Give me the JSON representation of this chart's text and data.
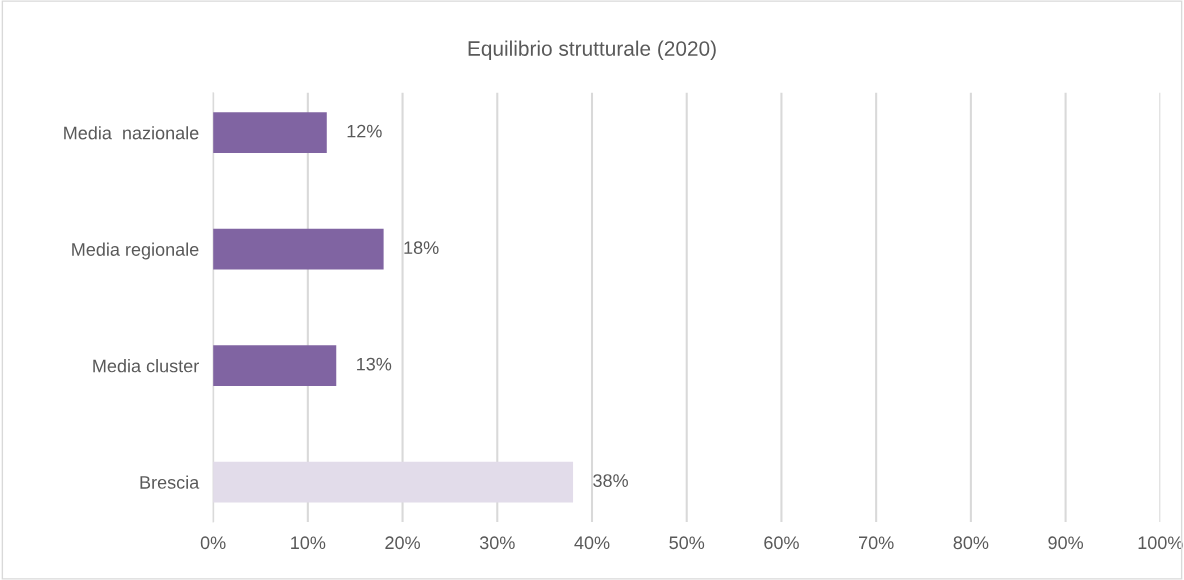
{
  "chart_data": {
    "type": "bar",
    "orientation": "horizontal",
    "title": "Equilibrio strutturale (2020)",
    "categories": [
      "Media  nazionale",
      "Media regionale",
      "Media cluster",
      "Brescia"
    ],
    "values": [
      12,
      18,
      13,
      38
    ],
    "colors": [
      "#8064a2",
      "#8064a2",
      "#8064a2",
      "#e2dcea"
    ],
    "value_labels": [
      "12%",
      "18%",
      "13%",
      "38%"
    ],
    "xlim": [
      0,
      100
    ],
    "xticks": [
      {
        "value": 0,
        "label": "0%"
      },
      {
        "value": 10,
        "label": "10%"
      },
      {
        "value": 20,
        "label": "20%"
      },
      {
        "value": 30,
        "label": "30%"
      },
      {
        "value": 40,
        "label": "40%"
      },
      {
        "value": 50,
        "label": "50%"
      },
      {
        "value": 60,
        "label": "60%"
      },
      {
        "value": 70,
        "label": "70%"
      },
      {
        "value": 80,
        "label": "80%"
      },
      {
        "value": 90,
        "label": "90%"
      },
      {
        "value": 100,
        "label": "100%"
      }
    ],
    "grid": "x",
    "legend": false
  }
}
